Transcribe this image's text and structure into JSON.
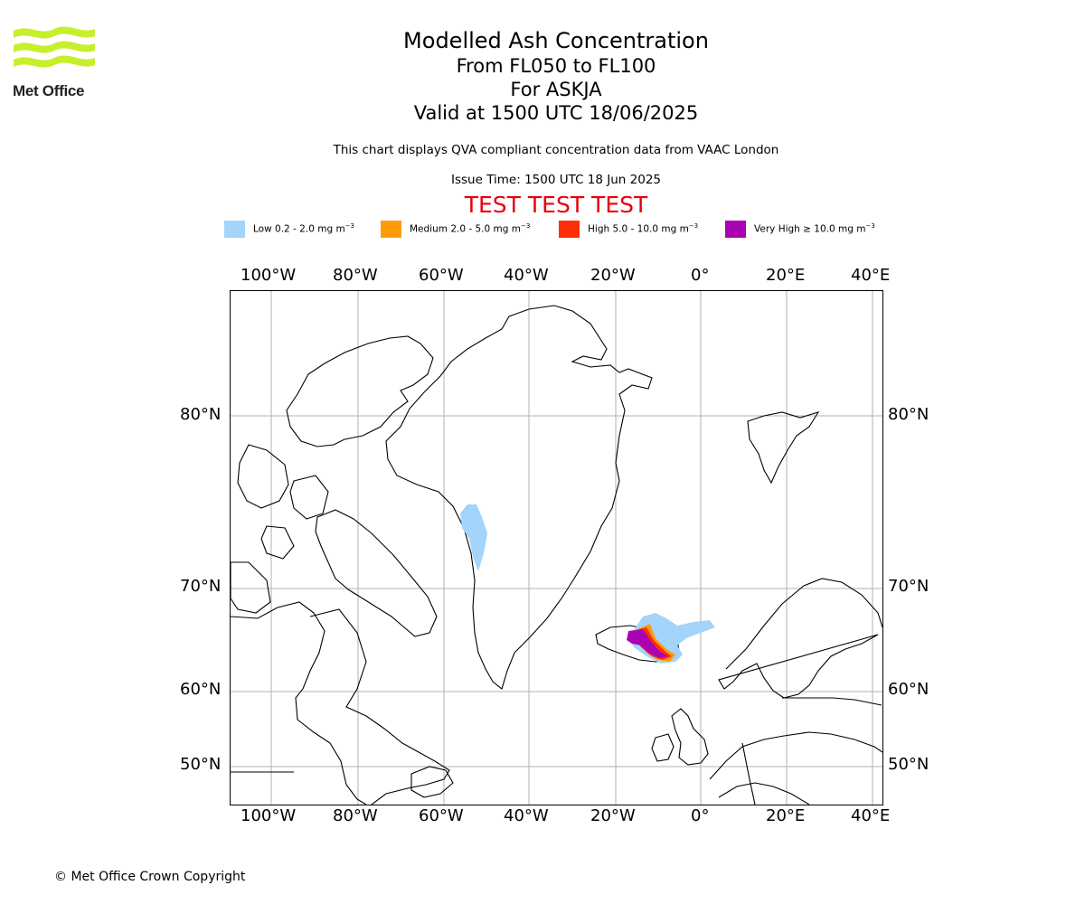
{
  "header": {
    "logo_text": "Met Office",
    "title": "Modelled Ash Concentration",
    "levels": "From FL050 to FL100",
    "volcano": "For ASKJA",
    "valid": "Valid at 1500 UTC 18/06/2025",
    "subtitle": "This chart displays QVA compliant concentration data from VAAC London",
    "issue_time": "Issue Time: 1500 UTC 18 Jun 2025",
    "test_banner": "TEST TEST TEST"
  },
  "legend": [
    {
      "label": "Low 0.2 - 2.0 mg m",
      "sup": "−3",
      "color": "#a3d4fb"
    },
    {
      "label": "Medium 2.0 - 5.0 mg m",
      "sup": "−3",
      "color": "#ff9b0b"
    },
    {
      "label": "High 5.0 - 10.0 mg m",
      "sup": "−3",
      "color": "#ff2e06"
    },
    {
      "label": "Very High  ≥  10.0 mg m",
      "sup": "−3",
      "color": "#aa03b4"
    }
  ],
  "map": {
    "lon_ticks": [
      "100°W",
      "80°W",
      "60°W",
      "40°W",
      "20°W",
      "0°",
      "20°E",
      "40°E"
    ],
    "lat_ticks": [
      "80°N",
      "70°N",
      "60°N",
      "50°N"
    ],
    "gridlines": true
  },
  "footer": {
    "copyright": "© Met Office Crown Copyright"
  }
}
